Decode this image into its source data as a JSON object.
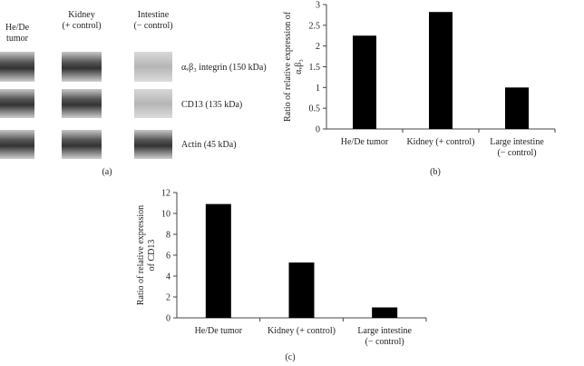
{
  "blot": {
    "columns": [
      "He/De\ntumor",
      "Kidney\n(+ control)",
      "Intestine\n(− control)"
    ],
    "rows": [
      "αᵥβ₃ integrin (150 kDa)",
      "CD13 (135 kDa)",
      "Actin (45 kDa)"
    ],
    "panel_label": "(a)"
  },
  "chart_data": [
    {
      "type": "bar",
      "panel_label": "(b)",
      "y_label": "Ratio of relative expression of\nαᵥβ₃",
      "categories": [
        "He/De tumor",
        "Kidney (+ control)",
        "Large intestine\n(− control)"
      ],
      "values": [
        2.25,
        2.82,
        1.0
      ],
      "color": "#000000",
      "ylim": [
        0,
        3
      ],
      "yticks": [
        0,
        0.5,
        1,
        1.5,
        2,
        2.5,
        3
      ]
    },
    {
      "type": "bar",
      "panel_label": "(c)",
      "y_label": "Ratio of relative expression\nof CD13",
      "categories": [
        "He/De tumor",
        "Kidney (+ control)",
        "Large intestine\n(− control)"
      ],
      "values": [
        10.9,
        5.3,
        1.0
      ],
      "color": "#000000",
      "ylim": [
        0,
        12
      ],
      "yticks": [
        0,
        2,
        4,
        6,
        8,
        10,
        12
      ]
    }
  ]
}
